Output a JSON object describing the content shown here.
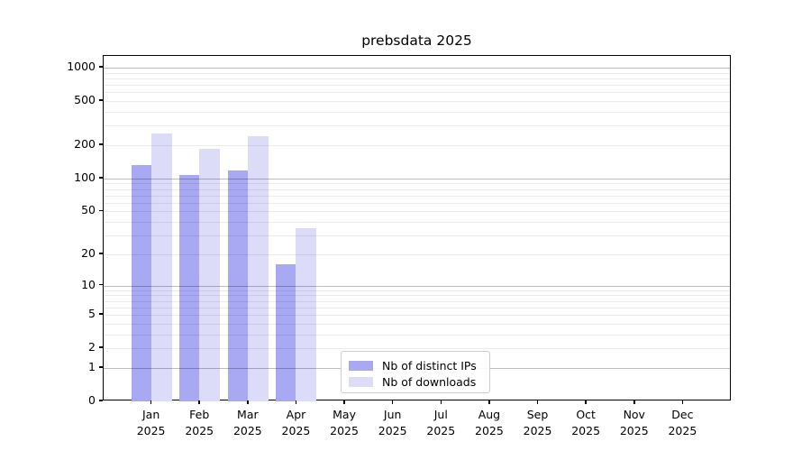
{
  "chart_data": {
    "type": "bar",
    "title": "prebsdata 2025",
    "y_scale": "log10(value+1)",
    "ylim": [
      0,
      1284
    ],
    "grid": true,
    "legend_position": "lower center",
    "y_ticks": [
      0,
      1,
      2,
      5,
      10,
      20,
      50,
      100,
      200,
      500,
      1000
    ],
    "categories": [
      {
        "month": "Jan",
        "year": "2025"
      },
      {
        "month": "Feb",
        "year": "2025"
      },
      {
        "month": "Mar",
        "year": "2025"
      },
      {
        "month": "Apr",
        "year": "2025"
      },
      {
        "month": "May",
        "year": "2025"
      },
      {
        "month": "Jun",
        "year": "2025"
      },
      {
        "month": "Jul",
        "year": "2025"
      },
      {
        "month": "Aug",
        "year": "2025"
      },
      {
        "month": "Sep",
        "year": "2025"
      },
      {
        "month": "Oct",
        "year": "2025"
      },
      {
        "month": "Nov",
        "year": "2025"
      },
      {
        "month": "Dec",
        "year": "2025"
      }
    ],
    "series": [
      {
        "name": "Nb of distinct IPs",
        "color": "#a8a8f3",
        "values": [
          132,
          108,
          119,
          16,
          0,
          0,
          0,
          0,
          0,
          0,
          0,
          0
        ]
      },
      {
        "name": "Nb of downloads",
        "color": "#dcdcf9",
        "values": [
          256,
          187,
          243,
          35,
          0,
          0,
          0,
          0,
          0,
          0,
          0,
          0
        ]
      }
    ]
  },
  "colors": {
    "background": "#ffffff",
    "axis": "#000000",
    "major_grid": "rgba(0,0,0,0.26)",
    "minor_grid": "rgba(0,0,0,0.08)",
    "legend_border": "#cccccc"
  }
}
